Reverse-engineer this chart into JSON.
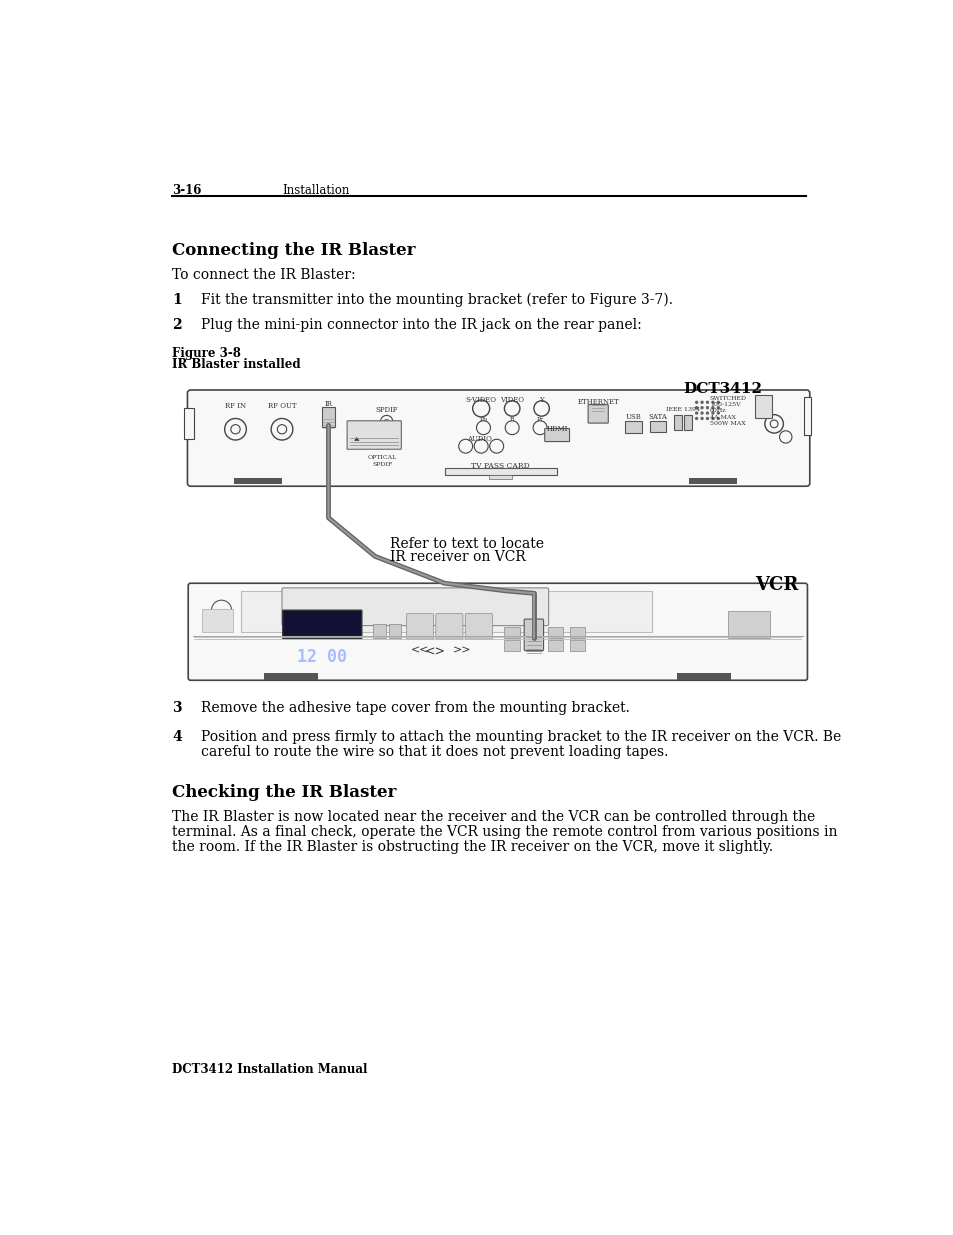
{
  "page_number": "3-16",
  "header_section": "Installation",
  "footer_text": "DCT3412 Installation Manual",
  "section1_title": "Connecting the IR Blaster",
  "section1_intro": "To connect the IR Blaster:",
  "step1_num": "1",
  "step1_text": "Fit the transmitter into the mounting bracket (refer to Figure 3-7).",
  "step2_num": "2",
  "step2_text": "Plug the mini-pin connector into the IR jack on the rear panel:",
  "figure_label": "Figure 3-8",
  "figure_caption": "IR Blaster installed",
  "dct3412_label": "DCT3412",
  "vcr_label": "VCR",
  "callout_line1": "Refer to text to locate",
  "callout_line2": "IR receiver on VCR",
  "step3_num": "3",
  "step3_text": "Remove the adhesive tape cover from the mounting bracket.",
  "step4_num": "4",
  "step4_line1": "Position and press firmly to attach the mounting bracket to the IR receiver on the VCR. Be",
  "step4_line2": "careful to route the wire so that it does not prevent loading tapes.",
  "section2_title": "Checking the IR Blaster",
  "section2_line1": "The IR Blaster is now located near the receiver and the VCR can be controlled through the",
  "section2_line2": "terminal. As a final check, operate the VCR using the remote control from various positions in",
  "section2_line3": "the room. If the IR Blaster is obstructing the IR receiver on the VCR, move it slightly.",
  "bg_color": "#ffffff",
  "text_color": "#000000",
  "device_edge": "#444444",
  "device_fill": "#f8f8f8",
  "dark_fill": "#888888",
  "wire_color": "#666666"
}
